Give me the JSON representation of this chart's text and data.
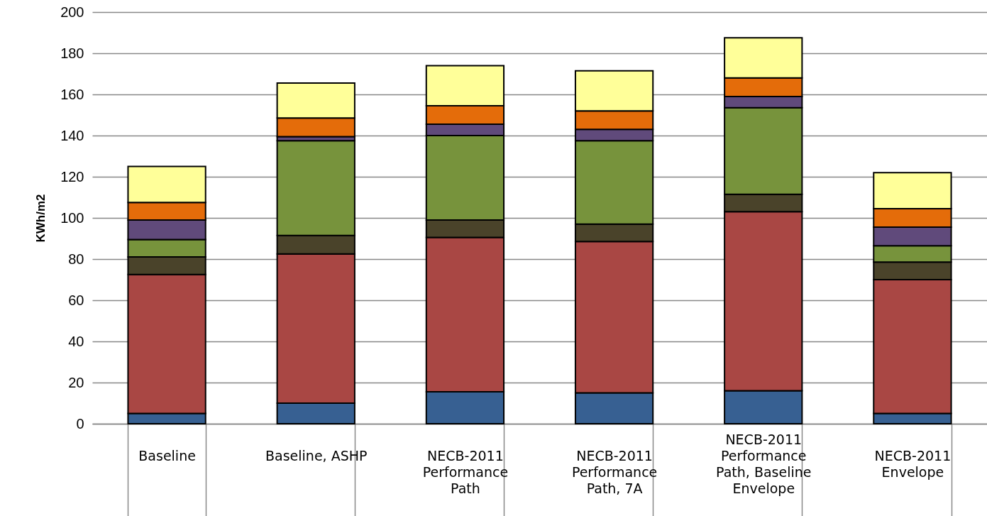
{
  "chart_data": {
    "type": "bar",
    "stacked": true,
    "ylabel": "KWh/m2",
    "categories": [
      "Baseline",
      "Baseline, ASHP",
      "NECB-2011 Performance Path",
      "NECB-2011 Performance Path, 7A",
      "NECB-2011 Performance Path, Baseline Envelope",
      "NECB-2011 Envelope"
    ],
    "series": [
      {
        "color": "#376092",
        "values": [
          5,
          10,
          15.5,
          15,
          16,
          5
        ]
      },
      {
        "color": "#a94744",
        "values": [
          67.5,
          72.5,
          75,
          73.5,
          87,
          65
        ]
      },
      {
        "color": "#4a432a",
        "values": [
          8.5,
          9,
          8.5,
          8.5,
          8.5,
          8.5
        ]
      },
      {
        "color": "#77933c",
        "values": [
          8.5,
          46,
          41,
          40.5,
          42,
          8
        ]
      },
      {
        "color": "#604a7b",
        "values": [
          9.5,
          2,
          5.5,
          5.5,
          5.5,
          9
        ]
      },
      {
        "color": "#e46c0a",
        "values": [
          8.5,
          9,
          9,
          9,
          9,
          9
        ]
      },
      {
        "color": "#ffff99",
        "values": [
          17.5,
          17,
          19.5,
          19.5,
          19.5,
          17.5
        ]
      }
    ],
    "ylim": [
      0,
      200
    ],
    "yticks": [
      0,
      20,
      40,
      60,
      80,
      100,
      120,
      140,
      160,
      180,
      200
    ],
    "grid": "y"
  }
}
